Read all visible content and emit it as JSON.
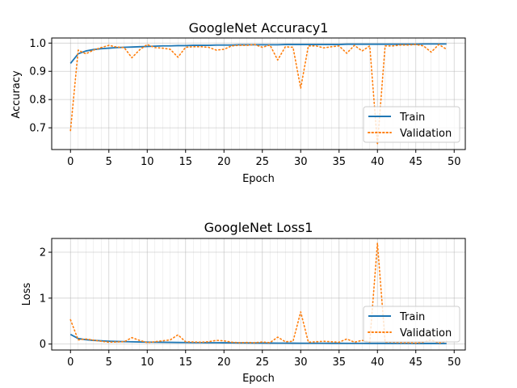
{
  "colors": {
    "train": "#1f77b4",
    "validation": "#ff7f0e",
    "grid": "#b0b0b0"
  },
  "chart_data": [
    {
      "type": "line",
      "title": "GoogleNet Accuracy1",
      "xlabel": "Epoch",
      "ylabel": "Accuracy",
      "xlim": [
        -2.45,
        51.45
      ],
      "ylim": [
        0.623,
        1.018
      ],
      "xticks": [
        "0",
        "5",
        "10",
        "15",
        "20",
        "25",
        "30",
        "35",
        "40",
        "45",
        "50"
      ],
      "yticks": [
        "0.7",
        "0.8",
        "0.9",
        "1.0"
      ],
      "grid": true,
      "legend": "lower-right",
      "series": [
        {
          "name": "Train",
          "style": "solid",
          "x": [
            0,
            1,
            2,
            3,
            4,
            5,
            6,
            7,
            8,
            9,
            10,
            11,
            12,
            13,
            14,
            15,
            16,
            17,
            18,
            19,
            20,
            21,
            22,
            23,
            24,
            25,
            26,
            27,
            28,
            29,
            30,
            31,
            32,
            33,
            34,
            35,
            36,
            37,
            38,
            39,
            40,
            41,
            42,
            43,
            44,
            45,
            46,
            47,
            48,
            49
          ],
          "values": [
            0.928,
            0.962,
            0.972,
            0.977,
            0.98,
            0.982,
            0.984,
            0.985,
            0.986,
            0.987,
            0.988,
            0.989,
            0.99,
            0.99,
            0.991,
            0.991,
            0.992,
            0.992,
            0.992,
            0.993,
            0.993,
            0.993,
            0.994,
            0.994,
            0.994,
            0.994,
            0.994,
            0.994,
            0.995,
            0.995,
            0.995,
            0.995,
            0.995,
            0.995,
            0.995,
            0.995,
            0.996,
            0.996,
            0.996,
            0.996,
            0.996,
            0.996,
            0.996,
            0.996,
            0.996,
            0.996,
            0.997,
            0.997,
            0.997,
            0.997
          ]
        },
        {
          "name": "Validation",
          "style": "dotted",
          "x": [
            0,
            1,
            2,
            3,
            4,
            5,
            6,
            7,
            8,
            9,
            10,
            11,
            12,
            13,
            14,
            15,
            16,
            17,
            18,
            19,
            20,
            21,
            22,
            23,
            24,
            25,
            26,
            27,
            28,
            29,
            30,
            31,
            32,
            33,
            34,
            35,
            36,
            37,
            38,
            39,
            40,
            41,
            42,
            43,
            44,
            45,
            46,
            47,
            48,
            49
          ],
          "values": [
            0.69,
            0.975,
            0.962,
            0.975,
            0.984,
            0.992,
            0.986,
            0.984,
            0.948,
            0.976,
            0.995,
            0.984,
            0.982,
            0.978,
            0.95,
            0.985,
            0.987,
            0.987,
            0.985,
            0.975,
            0.978,
            0.99,
            0.992,
            0.992,
            0.995,
            0.985,
            0.993,
            0.94,
            0.987,
            0.985,
            0.84,
            0.99,
            0.99,
            0.983,
            0.987,
            0.99,
            0.964,
            0.992,
            0.972,
            0.99,
            0.64,
            0.99,
            0.99,
            0.993,
            0.993,
            0.995,
            0.99,
            0.968,
            0.995,
            0.978
          ]
        }
      ]
    },
    {
      "type": "line",
      "title": "GoogleNet Loss1",
      "xlabel": "Epoch",
      "ylabel": "Loss",
      "xlim": [
        -2.45,
        51.45
      ],
      "ylim": [
        -0.13,
        2.3
      ],
      "xticks": [
        "0",
        "5",
        "10",
        "15",
        "20",
        "25",
        "30",
        "35",
        "40",
        "45",
        "50"
      ],
      "yticks": [
        "0",
        "1",
        "2"
      ],
      "grid": true,
      "legend": "lower-right",
      "series": [
        {
          "name": "Train",
          "style": "solid",
          "x": [
            0,
            1,
            2,
            3,
            4,
            5,
            6,
            7,
            8,
            9,
            10,
            11,
            12,
            13,
            14,
            15,
            16,
            17,
            18,
            19,
            20,
            21,
            22,
            23,
            24,
            25,
            26,
            27,
            28,
            29,
            30,
            31,
            32,
            33,
            34,
            35,
            36,
            37,
            38,
            39,
            40,
            41,
            42,
            43,
            44,
            45,
            46,
            47,
            48,
            49
          ],
          "values": [
            0.21,
            0.12,
            0.095,
            0.08,
            0.07,
            0.062,
            0.056,
            0.052,
            0.048,
            0.045,
            0.042,
            0.04,
            0.038,
            0.036,
            0.034,
            0.033,
            0.031,
            0.03,
            0.029,
            0.028,
            0.027,
            0.026,
            0.025,
            0.024,
            0.023,
            0.022,
            0.021,
            0.02,
            0.02,
            0.019,
            0.018,
            0.018,
            0.017,
            0.017,
            0.016,
            0.016,
            0.015,
            0.015,
            0.015,
            0.014,
            0.014,
            0.014,
            0.013,
            0.013,
            0.013,
            0.012,
            0.012,
            0.012,
            0.012,
            0.011
          ]
        },
        {
          "name": "Validation",
          "style": "dotted",
          "x": [
            0,
            1,
            2,
            3,
            4,
            5,
            6,
            7,
            8,
            9,
            10,
            11,
            12,
            13,
            14,
            15,
            16,
            17,
            18,
            19,
            20,
            21,
            22,
            23,
            24,
            25,
            26,
            27,
            28,
            29,
            30,
            31,
            32,
            33,
            34,
            35,
            36,
            37,
            38,
            39,
            40,
            41,
            42,
            43,
            44,
            45,
            46,
            47,
            48,
            49
          ],
          "values": [
            0.53,
            0.09,
            0.11,
            0.085,
            0.06,
            0.04,
            0.045,
            0.05,
            0.14,
            0.08,
            0.03,
            0.05,
            0.07,
            0.09,
            0.2,
            0.05,
            0.045,
            0.04,
            0.05,
            0.08,
            0.07,
            0.04,
            0.03,
            0.035,
            0.03,
            0.045,
            0.03,
            0.15,
            0.05,
            0.06,
            0.7,
            0.04,
            0.05,
            0.06,
            0.05,
            0.04,
            0.11,
            0.04,
            0.08,
            0.04,
            2.2,
            0.04,
            0.04,
            0.03,
            0.03,
            0.02,
            0.04,
            0.09,
            0.02,
            0.06
          ]
        }
      ]
    }
  ]
}
